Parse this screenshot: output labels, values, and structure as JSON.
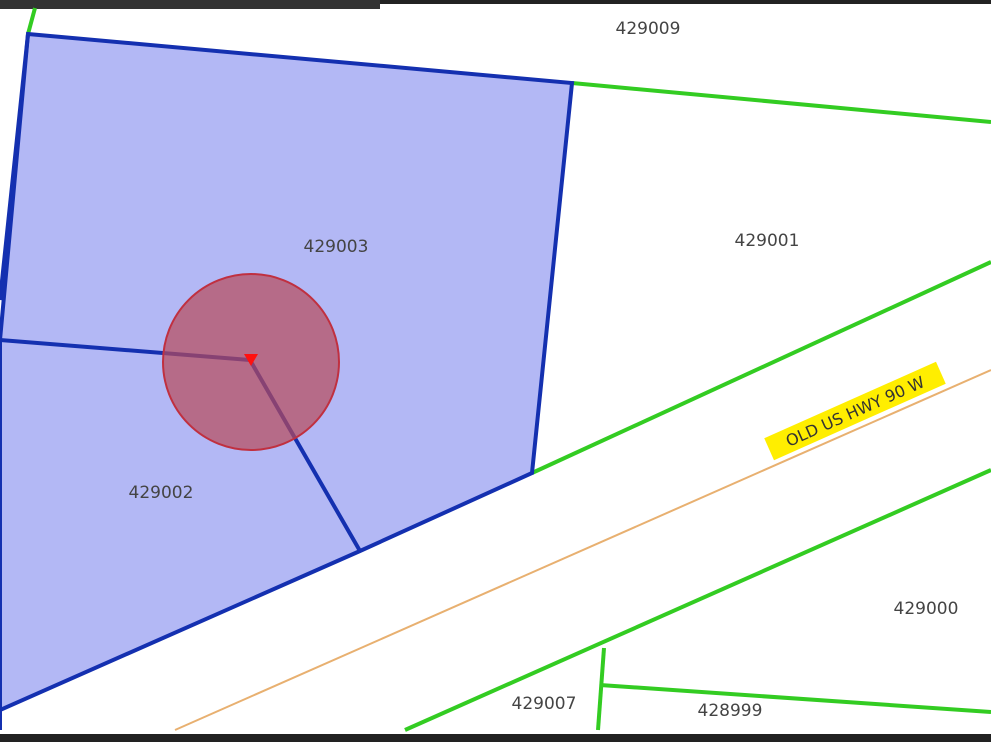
{
  "parcels": [
    {
      "label": "429009"
    },
    {
      "label": "429003"
    },
    {
      "label": "429001"
    },
    {
      "label": "429002"
    },
    {
      "label": "429000"
    },
    {
      "label": "429007"
    },
    {
      "label": "428999"
    }
  ],
  "road": {
    "label": "OLD US HWY 90 W"
  }
}
